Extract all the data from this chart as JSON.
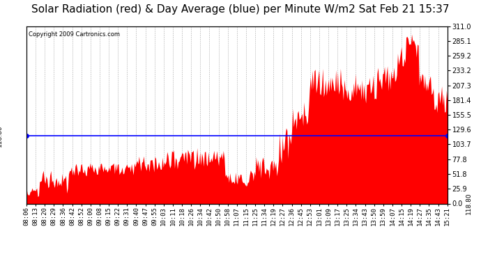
{
  "title": "Solar Radiation (red) & Day Average (blue) per Minute W/m2 Sat Feb 21 15:37",
  "copyright": "Copyright 2009 Cartronics.com",
  "y_right_labels": [
    "311.0",
    "285.1",
    "259.2",
    "233.2",
    "207.3",
    "181.4",
    "155.5",
    "129.6",
    "103.7",
    "77.8",
    "51.8",
    "25.9",
    "0.0"
  ],
  "y_right_values": [
    311.0,
    285.1,
    259.2,
    233.2,
    207.3,
    181.4,
    155.5,
    129.6,
    103.7,
    77.8,
    51.8,
    25.9,
    0.0
  ],
  "y_max": 311.0,
  "y_min": 0.0,
  "day_average": 118.8,
  "bar_color": "#FF0000",
  "avg_line_color": "#0000FF",
  "background_color": "#FFFFFF",
  "grid_color": "#999999",
  "x_tick_labels": [
    "08:06",
    "08:13",
    "08:20",
    "08:29",
    "08:36",
    "08:42",
    "08:52",
    "09:00",
    "09:08",
    "09:15",
    "09:22",
    "09:31",
    "09:40",
    "09:47",
    "09:55",
    "10:03",
    "10:11",
    "10:18",
    "10:26",
    "10:34",
    "10:42",
    "10:50",
    "10:58",
    "11:07",
    "11:15",
    "11:25",
    "11:34",
    "12:19",
    "12:27",
    "12:36",
    "12:45",
    "12:53",
    "13:01",
    "13:09",
    "13:17",
    "13:25",
    "13:34",
    "13:43",
    "13:50",
    "13:59",
    "14:07",
    "14:15",
    "14:19",
    "14:27",
    "14:35",
    "14:43",
    "15:21"
  ],
  "title_fontsize": 11,
  "tick_label_fontsize": 6.5
}
